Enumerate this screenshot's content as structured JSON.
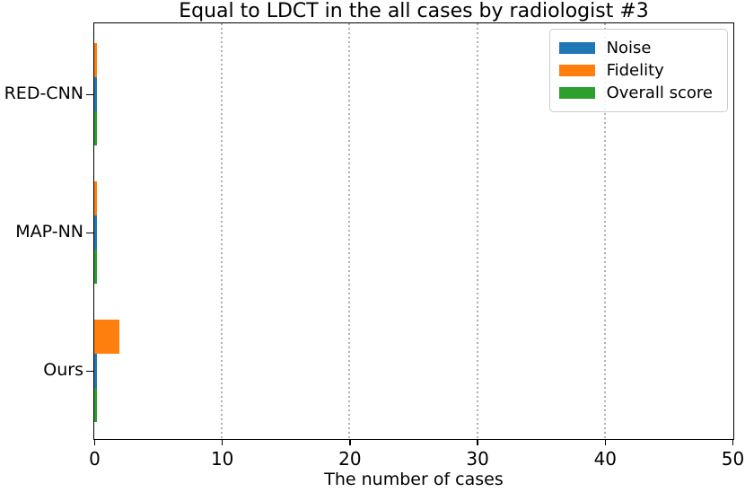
{
  "chart_data": {
    "type": "bar",
    "orientation": "horizontal",
    "grouped": true,
    "title": "Equal to LDCT in the all cases by radiologist #3",
    "xlabel": "The number of cases",
    "ylabel": "",
    "categories": [
      "RED-CNN",
      "MAP-NN",
      "Ours"
    ],
    "series": [
      {
        "name": "Noise",
        "color": "#1f77b4",
        "values": [
          0.2,
          0.2,
          0.2
        ],
        "row_offset": 0
      },
      {
        "name": "Fidelity",
        "color": "#ff7f0e",
        "values": [
          0.2,
          0.2,
          2.0
        ],
        "row_offset": -1
      },
      {
        "name": "Overall score",
        "color": "#2ca02c",
        "values": [
          0.2,
          0.2,
          0.2
        ],
        "row_offset": 1
      }
    ],
    "xlim": [
      0,
      50
    ],
    "x_ticks": [
      0,
      10,
      20,
      30,
      40,
      50
    ],
    "grid": "vertical-dotted",
    "gridline_color": "#b0b0b0",
    "legend": {
      "position": "upper-right",
      "entries": [
        "Noise",
        "Fidelity",
        "Overall score"
      ]
    }
  }
}
